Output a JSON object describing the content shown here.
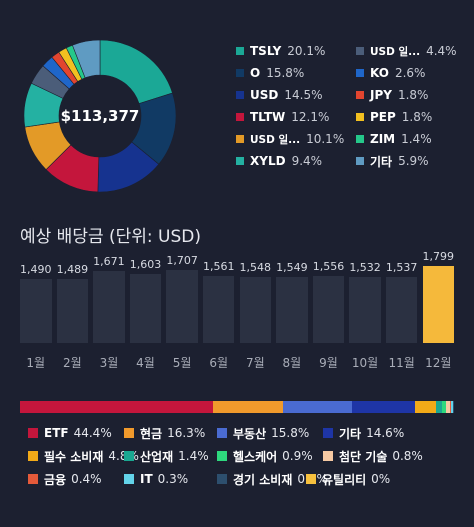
{
  "donut": {
    "total_label": "$113,377",
    "slices": [
      {
        "name": "TSLY",
        "percent": 20.1,
        "color": "#1ba896"
      },
      {
        "name": "O",
        "percent": 15.8,
        "color": "#113a64"
      },
      {
        "name": "USD",
        "percent": 14.5,
        "color": "#16338f"
      },
      {
        "name": "TLTW",
        "percent": 12.1,
        "color": "#c4163c"
      },
      {
        "name": "USD 일...",
        "percent": 10.1,
        "color": "#e39a27"
      },
      {
        "name": "XYLD",
        "percent": 9.4,
        "color": "#24b1a2"
      },
      {
        "name": "USD 일...",
        "percent": 4.4,
        "color": "#4b5d79"
      },
      {
        "name": "KO",
        "percent": 2.6,
        "color": "#1f66c9"
      },
      {
        "name": "JPY",
        "percent": 1.8,
        "color": "#e2452f"
      },
      {
        "name": "PEP",
        "percent": 1.8,
        "color": "#f2c020"
      },
      {
        "name": "ZIM",
        "percent": 1.4,
        "color": "#25c88a"
      },
      {
        "name": "기타",
        "percent": 5.9,
        "color": "#5f9bc2"
      }
    ]
  },
  "legend_top": {
    "col1": [
      {
        "name": "TSLY",
        "percent": "20.1%",
        "color": "#1ba896"
      },
      {
        "name": "O",
        "percent": "15.8%",
        "color": "#113a64"
      },
      {
        "name": "USD",
        "percent": "14.5%",
        "color": "#16338f"
      },
      {
        "name": "TLTW",
        "percent": "12.1%",
        "color": "#c4163c"
      },
      {
        "name": "USD 일...",
        "percent": "10.1%",
        "color": "#e39a27"
      },
      {
        "name": "XYLD",
        "percent": "9.4%",
        "color": "#24b1a2"
      }
    ],
    "col2": [
      {
        "name": "USD 일...",
        "percent": "4.4%",
        "color": "#4b5d79"
      },
      {
        "name": "KO",
        "percent": "2.6%",
        "color": "#1f66c9"
      },
      {
        "name": "JPY",
        "percent": "1.8%",
        "color": "#e2452f"
      },
      {
        "name": "PEP",
        "percent": "1.8%",
        "color": "#f2c020"
      },
      {
        "name": "ZIM",
        "percent": "1.4%",
        "color": "#25c88a"
      },
      {
        "name": "기타",
        "percent": "5.9%",
        "color": "#5f9bc2"
      }
    ]
  },
  "chart_data": {
    "type": "bar",
    "title": "예상 배당금 (단위: USD)",
    "categories": [
      "1월",
      "2월",
      "3월",
      "4월",
      "5월",
      "6월",
      "7월",
      "8월",
      "9월",
      "10월",
      "11월",
      "12월"
    ],
    "values": [
      1490,
      1489,
      1671,
      1603,
      1707,
      1561,
      1548,
      1549,
      1556,
      1532,
      1537,
      1799
    ],
    "value_labels": [
      "1,490",
      "1,489",
      "1,671",
      "1,603",
      "1,707",
      "1,561",
      "1,548",
      "1,549",
      "1,556",
      "1,532",
      "1,537",
      "1,799"
    ],
    "bar_color": "#2b3142",
    "highlight_color": "#f5b93b",
    "highlight_index": 11,
    "ylim": [
      0,
      1799
    ]
  },
  "allocation": {
    "items": [
      {
        "name": "ETF",
        "percent": 44.4,
        "label": "44.4%",
        "color": "#c4163c"
      },
      {
        "name": "현금",
        "percent": 16.3,
        "label": "16.3%",
        "color": "#f19a2c"
      },
      {
        "name": "부동산",
        "percent": 15.8,
        "label": "15.8%",
        "color": "#4a6bd1"
      },
      {
        "name": "기타",
        "percent": 14.6,
        "label": "14.6%",
        "color": "#1e35a6"
      },
      {
        "name": "필수 소비재",
        "percent": 4.8,
        "label": "4.8%",
        "color": "#f2aa18"
      },
      {
        "name": "산업재",
        "percent": 1.4,
        "label": "1.4%",
        "color": "#1aa791"
      },
      {
        "name": "헬스케어",
        "percent": 0.9,
        "label": "0.9%",
        "color": "#2ed87e"
      },
      {
        "name": "첨단 기술",
        "percent": 0.8,
        "label": "0.8%",
        "color": "#f6c9a3"
      },
      {
        "name": "금융",
        "percent": 0.4,
        "label": "0.4%",
        "color": "#e55a3a"
      },
      {
        "name": "IT",
        "percent": 0.3,
        "label": "0.3%",
        "color": "#63d3e9"
      },
      {
        "name": "경기 소비재",
        "percent": 0.3,
        "label": "0.3%",
        "color": "#2d4f6e"
      },
      {
        "name": "유틸리티",
        "percent": 0,
        "label": "0%",
        "color": "#f6c03e"
      }
    ]
  }
}
